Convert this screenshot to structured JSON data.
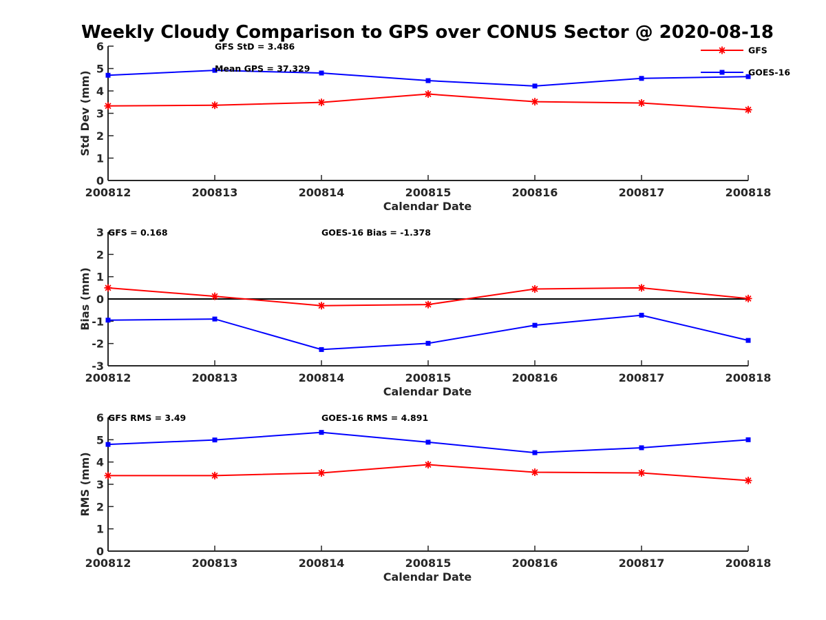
{
  "title": "Weekly Cloudy Comparison to GPS over CONUS Sector @ 2020-08-18",
  "colors": {
    "GFS": "#ff0000",
    "GOES-16": "#0000ff",
    "axis": "#262626",
    "zero_line": "#000000"
  },
  "legend": {
    "placement": "top-right",
    "entries": [
      "GFS",
      "GOES-16"
    ],
    "markers": {
      "GFS": "asterisk",
      "GOES-16": "square"
    }
  },
  "chart_data": [
    {
      "type": "line",
      "categories": [
        "200812",
        "200813",
        "200814",
        "200815",
        "200816",
        "200817",
        "200818"
      ],
      "xlabel": "Calendar Date",
      "ylabel": "Std Dev (mm)",
      "ylim": [
        0,
        6
      ],
      "yticks": [
        0,
        1,
        2,
        3,
        4,
        5,
        6
      ],
      "series": [
        {
          "name": "GFS",
          "values": [
            3.33,
            3.36,
            3.49,
            3.86,
            3.52,
            3.46,
            3.16
          ]
        },
        {
          "name": "GOES-16",
          "values": [
            4.7,
            4.92,
            4.8,
            4.46,
            4.22,
            4.56,
            4.64
          ]
        }
      ],
      "annotations": [
        "GFS StD = 3.486",
        "Mean GPS = 37.329"
      ]
    },
    {
      "type": "line",
      "categories": [
        "200812",
        "200813",
        "200814",
        "200815",
        "200816",
        "200817",
        "200818"
      ],
      "xlabel": "Calendar Date",
      "ylabel": "Bias (mm)",
      "ylim": [
        -3,
        3
      ],
      "yticks": [
        -3,
        -2,
        -1,
        0,
        1,
        2,
        3
      ],
      "zero_line": true,
      "series": [
        {
          "name": "GFS",
          "values": [
            0.5,
            0.12,
            -0.3,
            -0.25,
            0.45,
            0.5,
            0.02
          ]
        },
        {
          "name": "GOES-16",
          "values": [
            -0.95,
            -0.9,
            -2.27,
            -1.99,
            -1.18,
            -0.73,
            -1.86
          ]
        }
      ],
      "annotations": [
        "GFS = 0.168",
        "GOES-16 Bias  = -1.378"
      ]
    },
    {
      "type": "line",
      "categories": [
        "200812",
        "200813",
        "200814",
        "200815",
        "200816",
        "200817",
        "200818"
      ],
      "xlabel": "Calendar Date",
      "ylabel": "RMS (mm)",
      "ylim": [
        0,
        6
      ],
      "yticks": [
        0,
        1,
        2,
        3,
        4,
        5,
        6
      ],
      "series": [
        {
          "name": "GFS",
          "values": [
            3.39,
            3.39,
            3.51,
            3.88,
            3.54,
            3.51,
            3.17
          ]
        },
        {
          "name": "GOES-16",
          "values": [
            4.79,
            4.99,
            5.33,
            4.89,
            4.42,
            4.64,
            5.0
          ]
        }
      ],
      "annotations": [
        "GFS RMS = 3.49",
        "GOES-16 RMS = 4.891"
      ]
    }
  ]
}
